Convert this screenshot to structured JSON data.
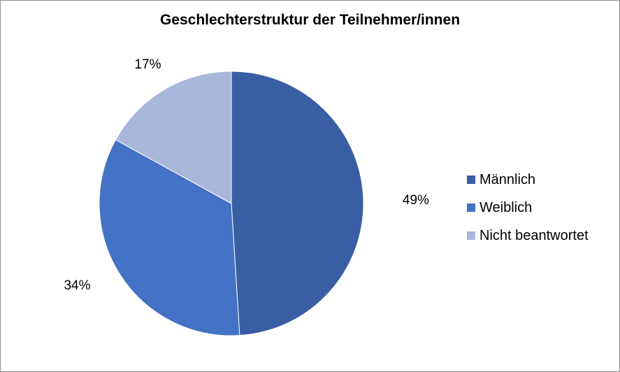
{
  "chart_data": {
    "type": "pie",
    "title": "Geschlechterstruktur der Teilnehmer/innen",
    "slices": [
      {
        "label": "Männlich",
        "value": 49,
        "display": "49%",
        "color": "#3a5ea4"
      },
      {
        "label": "Weiblich",
        "value": 34,
        "display": "34%",
        "color": "#4472c4"
      },
      {
        "label": "Nicht beantwortet",
        "value": 17,
        "display": "17%",
        "color": "#a9b7db"
      }
    ],
    "legend_position": "right"
  }
}
